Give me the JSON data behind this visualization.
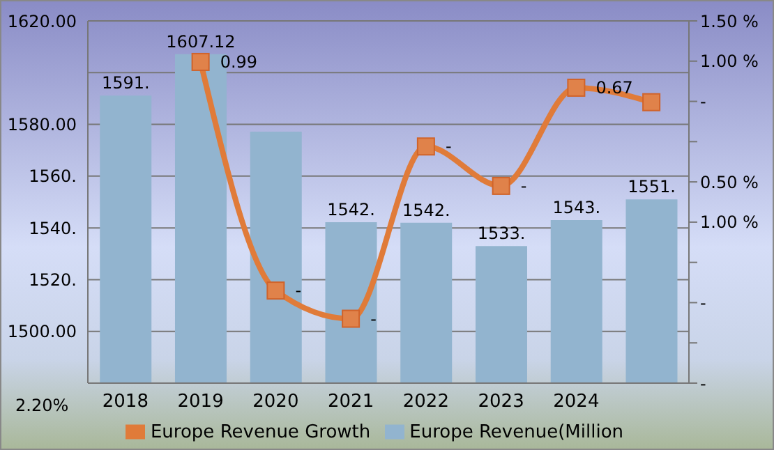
{
  "chart_data": {
    "type": "bar",
    "categories": [
      "2018",
      "2019",
      "2020",
      "2021",
      "2022",
      "2023",
      "2024",
      null
    ],
    "series": [
      {
        "name": "Europe Revenue(Million",
        "color": "#92b4cf",
        "values": [
          1591.1,
          1607.12,
          1577.2,
          1542.2,
          1542,
          1533,
          1543,
          1551
        ],
        "value_labels": [
          "1591.",
          "1607.12",
          null,
          "1542.",
          "1542.",
          "1533.",
          "1543.",
          "1551."
        ]
      },
      {
        "name": "Europe Revenue Growth",
        "type": "line",
        "axis": "y2",
        "color": "#e07b39",
        "values": [
          null,
          0.99,
          -1.85,
          -2.2,
          -0.06,
          -0.55,
          0.67,
          0.49
        ],
        "value_labels": [
          null,
          "0.99",
          "-",
          "-",
          "-",
          "-",
          "0.67",
          null
        ]
      }
    ],
    "ylim": [
      1480,
      1620
    ],
    "yticks": [
      {
        "value": 1480,
        "label": null
      },
      {
        "value": 1500,
        "label": "1500.00"
      },
      {
        "value": 1520,
        "label": "1520."
      },
      {
        "value": 1540,
        "label": "1540."
      },
      {
        "value": 1560,
        "label": "1560."
      },
      {
        "value": 1580,
        "label": "1580.00"
      },
      {
        "value": 1600,
        "label": null
      },
      {
        "value": 1620,
        "label": "1620.00"
      }
    ],
    "y2lim": [
      -3,
      1.5
    ],
    "y2ticks": [
      {
        "value": -3,
        "label": "-"
      },
      {
        "value": -2.5,
        "label": null
      },
      {
        "value": -2,
        "label": "-"
      },
      {
        "value": -1.5,
        "label": null
      },
      {
        "value": -1,
        "label": "1.00 %"
      },
      {
        "value": -0.5,
        "label": "0.50 %"
      },
      {
        "value": 0,
        "label": null
      },
      {
        "value": 0.5,
        "label": "-"
      },
      {
        "value": 1,
        "label": "1.00 %"
      },
      {
        "value": 1.5,
        "label": "1.50 %"
      }
    ],
    "annotations": [
      "2.20%"
    ],
    "grid": "y",
    "legend": "bottom",
    "marker": "square",
    "line_style": "solid"
  }
}
